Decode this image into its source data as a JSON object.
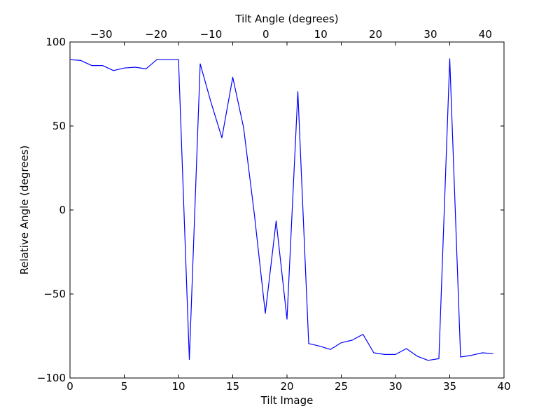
{
  "chart_data": {
    "type": "line",
    "title": "",
    "xlabel": "Tilt Image",
    "ylabel": "Relative Angle (degrees)",
    "top_xlabel": "Tilt Angle (degrees)",
    "xlim": [
      0,
      40
    ],
    "ylim": [
      -100,
      100
    ],
    "top_xlim": [
      -35.7,
      43.4
    ],
    "grid": false,
    "x_ticks": [
      0,
      5,
      10,
      15,
      20,
      25,
      30,
      35,
      40
    ],
    "x_tick_labels": [
      "0",
      "5",
      "10",
      "15",
      "20",
      "25",
      "30",
      "35",
      "40"
    ],
    "y_ticks": [
      100,
      50,
      0,
      -50,
      -100
    ],
    "y_tick_labels": [
      "100",
      "50",
      "0",
      "−50",
      "−100"
    ],
    "top_ticks": [
      -30,
      -20,
      -10,
      0,
      10,
      20,
      30,
      40
    ],
    "top_tick_labels": [
      "−30",
      "−20",
      "−10",
      "0",
      "10",
      "20",
      "30",
      "40"
    ],
    "series": [
      {
        "color": "#0000ff",
        "x": [
          0,
          1,
          2,
          3,
          4,
          5,
          6,
          7,
          8,
          9,
          10,
          11,
          12,
          13,
          14,
          15,
          16,
          17,
          18,
          19,
          20,
          21,
          22,
          23,
          24,
          25,
          26,
          27,
          28,
          29,
          30,
          31,
          32,
          33,
          34,
          35,
          36,
          37,
          38,
          39
        ],
        "values": [
          89.5,
          89.0,
          86.0,
          86.0,
          83.0,
          84.5,
          85.0,
          84.0,
          89.5,
          89.5,
          89.5,
          -89.0,
          87.0,
          64.0,
          43.0,
          79.0,
          49.0,
          -3.0,
          -61.5,
          -6.5,
          -65.0,
          70.5,
          -79.5,
          -81.0,
          -83.0,
          -79.0,
          -77.5,
          -74.0,
          -85.0,
          -86.0,
          -86.0,
          -82.5,
          -87.0,
          -89.5,
          -88.5,
          90.0,
          -87.5,
          -86.5,
          -85.0,
          -85.5
        ]
      }
    ]
  }
}
